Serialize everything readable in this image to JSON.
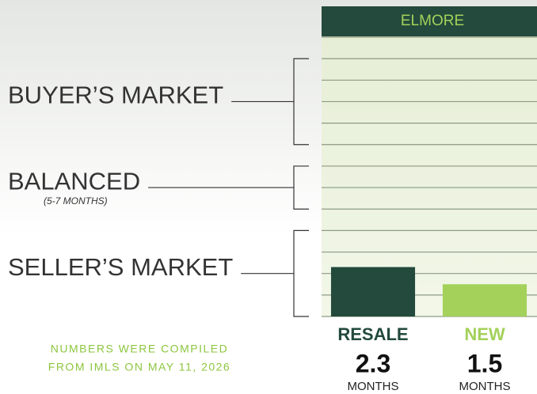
{
  "chart_data": {
    "type": "bar",
    "title": "ELMORE",
    "categories": [
      "RESALE",
      "NEW"
    ],
    "series": [
      {
        "name": "ELMORE",
        "colors": [
          "#234a3c",
          "#a3d15a"
        ],
        "values": [
          2.3,
          1.5
        ]
      }
    ],
    "unit": "MONTHS",
    "ylim": [
      0,
      13
    ],
    "yticks": [
      0,
      1,
      2,
      3,
      4,
      5,
      6,
      7,
      8,
      9,
      10,
      11,
      12,
      13
    ],
    "grid": true,
    "zones": [
      {
        "label": "BUYER’S MARKET",
        "range": [
          8,
          12
        ]
      },
      {
        "label": "BALANCED",
        "sublabel": "(5-7 MONTHS)",
        "range": [
          5,
          7
        ]
      },
      {
        "label": "SELLER’S MARKET",
        "range": [
          0,
          4
        ]
      }
    ],
    "note": [
      "NUMBERS WERE COMPILED",
      "FROM IMLS ON MAY 11, 2026"
    ]
  }
}
